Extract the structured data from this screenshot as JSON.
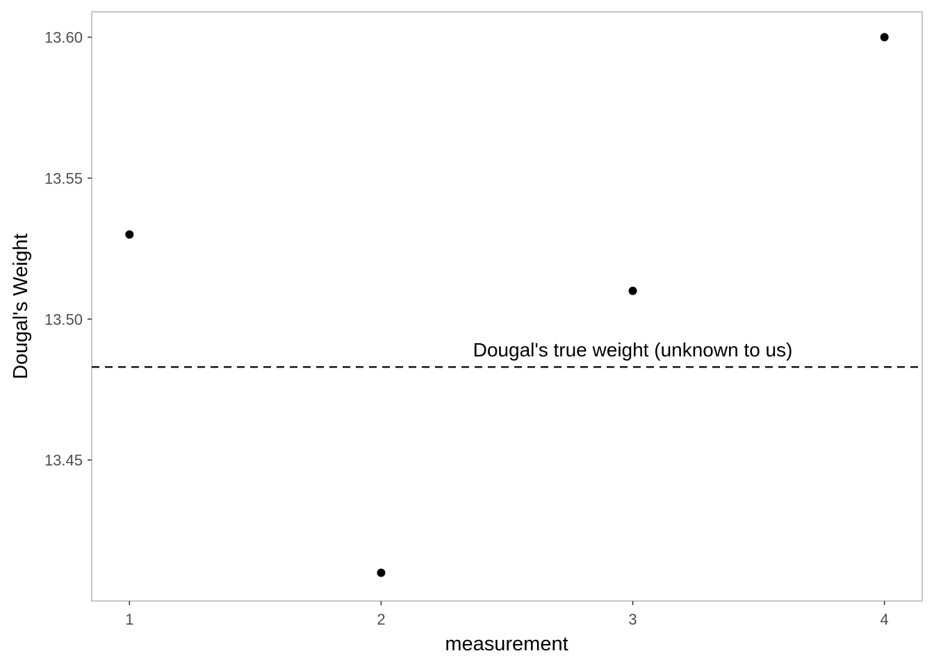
{
  "chart_data": {
    "type": "scatter",
    "title": "",
    "xlabel": "measurement",
    "ylabel": "Dougal's Weight",
    "x": [
      1,
      2,
      3,
      4
    ],
    "y": [
      13.53,
      13.41,
      13.51,
      13.6
    ],
    "xlim": [
      0.85,
      4.15
    ],
    "ylim": [
      13.4,
      13.609
    ],
    "x_ticks": [
      {
        "value": 1,
        "label": "1"
      },
      {
        "value": 2,
        "label": "2"
      },
      {
        "value": 3,
        "label": "3"
      },
      {
        "value": 4,
        "label": "4"
      }
    ],
    "y_ticks": [
      {
        "value": 13.45,
        "label": "13.45"
      },
      {
        "value": 13.5,
        "label": "13.50"
      },
      {
        "value": 13.55,
        "label": "13.55"
      },
      {
        "value": 13.6,
        "label": "13.60"
      }
    ],
    "reference_line": {
      "y": 13.483,
      "style": "dashed",
      "label": "Dougal's true weight (unknown to us)",
      "label_x": 3.0
    },
    "grid": false,
    "legend": "none",
    "colors": {
      "points": "#000000",
      "panel_border": "#b3b3b3",
      "tick_text": "#4d4d4d",
      "line": "#000000"
    }
  }
}
